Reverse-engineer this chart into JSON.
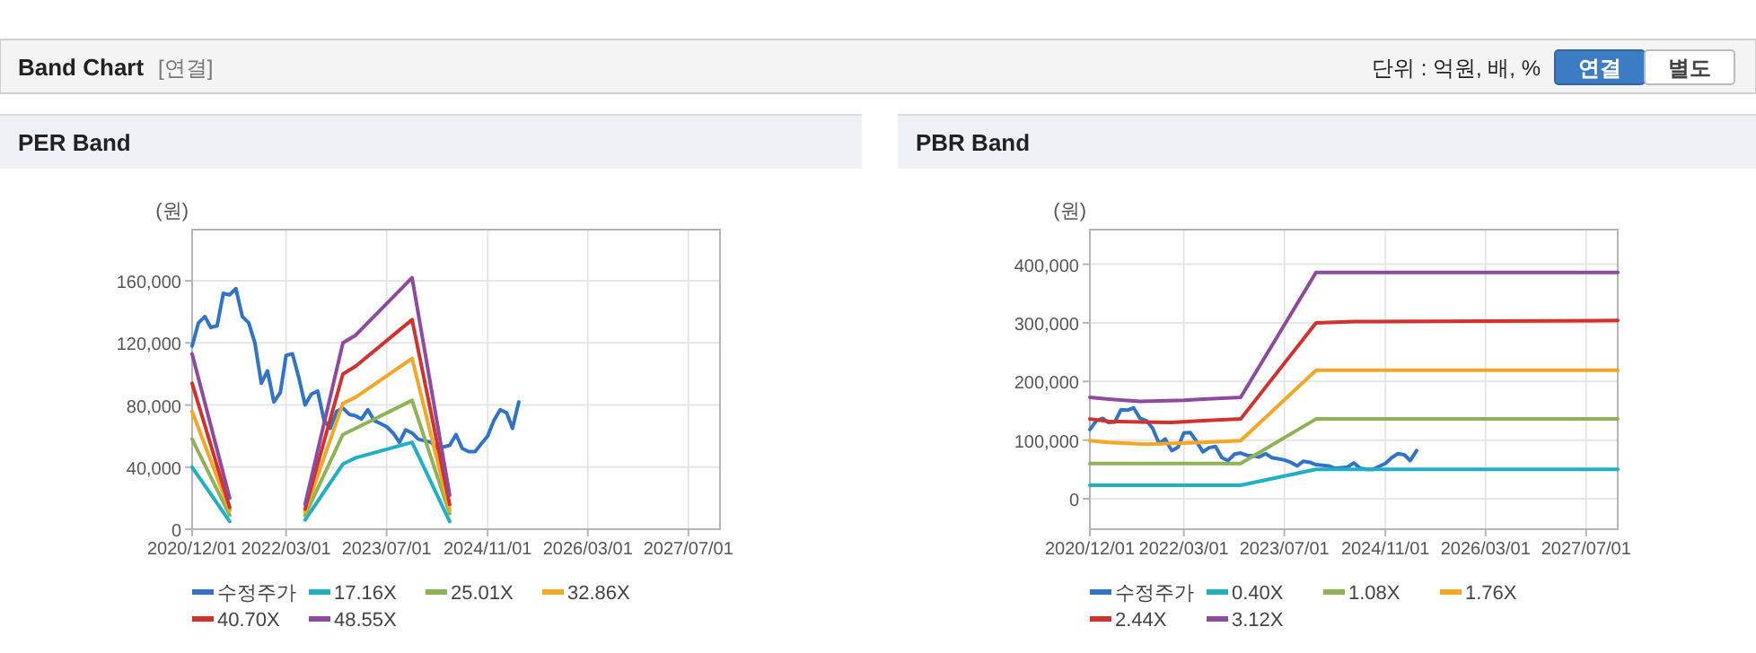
{
  "chart_data": [
    {
      "type": "other",
      "title": "Band Chart",
      "subtitle": "[연결]",
      "annotations": [
        "단위 : 억원, 배, %",
        "연결",
        "별도"
      ]
    },
    {
      "type": "line",
      "title": "PER Band",
      "ylabel": "(원)",
      "xlim": [
        "2020-12-01",
        "2027-12-01"
      ],
      "ylim": [
        0,
        193000
      ],
      "xticks": [
        {
          "value": "2020-12-01",
          "label": "2020/12/01"
        },
        {
          "value": "2022-03-01",
          "label": "2022/03/01"
        },
        {
          "value": "2023-07-01",
          "label": "2023/07/01"
        },
        {
          "value": "2024-11-01",
          "label": "2024/11/01"
        },
        {
          "value": "2026-03-01",
          "label": "2026/03/01"
        },
        {
          "value": "2027-07-01",
          "label": "2027/07/01"
        }
      ],
      "yticks": [
        0,
        {
          "value": 40000,
          "label": "40,000"
        },
        {
          "value": 80000,
          "label": "80,000"
        },
        {
          "value": 120000,
          "label": "120,000"
        },
        {
          "value": 160000,
          "label": "160,000"
        }
      ],
      "grid": true,
      "legend": "bottom",
      "line_style": "solid",
      "series": [
        {
          "name": "수정주가",
          "color": "#2f74c9",
          "x": [
            "2020-12",
            "2021-01",
            "2021-02",
            "2021-03",
            "2021-04",
            "2021-05",
            "2021-06",
            "2021-07",
            "2021-08",
            "2021-09",
            "2021-10",
            "2021-11",
            "2021-12",
            "2022-01",
            "2022-02",
            "2022-03",
            "2022-04",
            "2022-05",
            "2022-06",
            "2022-07",
            "2022-08",
            "2022-09",
            "2022-10",
            "2022-11",
            "2022-12",
            "2023-01",
            "2023-02",
            "2023-03",
            "2023-04",
            "2023-05",
            "2023-06",
            "2023-07",
            "2023-08",
            "2023-09",
            "2023-10",
            "2023-11",
            "2023-12",
            "2024-01",
            "2024-02",
            "2024-03",
            "2024-04",
            "2024-05",
            "2024-06",
            "2024-07",
            "2024-08",
            "2024-09",
            "2024-10",
            "2024-11",
            "2024-12",
            "2025-01",
            "2025-02",
            "2025-03",
            "2025-04"
          ],
          "values": [
            118000,
            133000,
            137000,
            130000,
            131000,
            152000,
            151000,
            155000,
            137000,
            133000,
            120000,
            94000,
            102000,
            82000,
            88000,
            112000,
            113000,
            98000,
            80000,
            87000,
            89000,
            70000,
            65000,
            76000,
            78000,
            74000,
            73000,
            71000,
            77000,
            70000,
            68000,
            66000,
            62000,
            56000,
            64000,
            62000,
            58000,
            57000,
            56000,
            52000,
            53000,
            54000,
            61000,
            52000,
            50000,
            50000,
            55000,
            60000,
            70000,
            77000,
            75000,
            65000,
            82000
          ]
        },
        {
          "name": "17.16X",
          "color": "#1fb0c6",
          "x": [
            "2020-12",
            "2021-06",
            "2021-12",
            "2022-06",
            "2022-12",
            "2023-02",
            "2023-11",
            "2024-05"
          ],
          "values": [
            40000,
            5000,
            null,
            6000,
            42000,
            46000,
            56000,
            5000
          ]
        },
        {
          "name": "25.01X",
          "color": "#8db356",
          "x": [
            "2020-12",
            "2021-06",
            "2021-12",
            "2022-06",
            "2022-12",
            "2023-02",
            "2023-11",
            "2024-05"
          ],
          "values": [
            58000,
            9000,
            null,
            9000,
            61000,
            65000,
            83000,
            10000
          ]
        },
        {
          "name": "32.86X",
          "color": "#f5a623",
          "x": [
            "2020-12",
            "2021-06",
            "2021-12",
            "2022-06",
            "2022-12",
            "2023-02",
            "2023-11",
            "2024-05"
          ],
          "values": [
            76000,
            12000,
            null,
            11000,
            81000,
            85000,
            110000,
            12000
          ]
        },
        {
          "name": "40.70X",
          "color": "#d2312c",
          "x": [
            "2020-12",
            "2021-06",
            "2021-12",
            "2022-06",
            "2022-12",
            "2023-02",
            "2023-11",
            "2024-05"
          ],
          "values": [
            94000,
            14000,
            null,
            13000,
            100000,
            105000,
            135000,
            16000
          ]
        },
        {
          "name": "48.55X",
          "color": "#8e4a9e",
          "x": [
            "2020-12",
            "2021-06",
            "2021-12",
            "2022-06",
            "2022-12",
            "2023-02",
            "2023-11",
            "2024-05"
          ],
          "values": [
            113000,
            20000,
            null,
            16000,
            120000,
            125000,
            162000,
            22000
          ]
        }
      ]
    },
    {
      "type": "line",
      "title": "PBR Band",
      "ylabel": "(원)",
      "xlim": [
        "2020-12-01",
        "2027-12-01"
      ],
      "ylim": [
        -52000,
        459000
      ],
      "xticks": [
        {
          "value": "2020-12-01",
          "label": "2020/12/01"
        },
        {
          "value": "2022-03-01",
          "label": "2022/03/01"
        },
        {
          "value": "2023-07-01",
          "label": "2023/07/01"
        },
        {
          "value": "2024-11-01",
          "label": "2024/11/01"
        },
        {
          "value": "2026-03-01",
          "label": "2026/03/01"
        },
        {
          "value": "2027-07-01",
          "label": "2027/07/01"
        }
      ],
      "yticks": [
        0,
        {
          "value": 100000,
          "label": "100,000"
        },
        {
          "value": 200000,
          "label": "200,000"
        },
        {
          "value": 300000,
          "label": "300,000"
        },
        {
          "value": 400000,
          "label": "400,000"
        }
      ],
      "grid": true,
      "legend": "bottom",
      "line_style": "solid",
      "series": [
        {
          "name": "수정주가",
          "color": "#2f74c9",
          "x": [
            "2020-12",
            "2021-01",
            "2021-02",
            "2021-03",
            "2021-04",
            "2021-05",
            "2021-06",
            "2021-07",
            "2021-08",
            "2021-09",
            "2021-10",
            "2021-11",
            "2021-12",
            "2022-01",
            "2022-02",
            "2022-03",
            "2022-04",
            "2022-05",
            "2022-06",
            "2022-07",
            "2022-08",
            "2022-09",
            "2022-10",
            "2022-11",
            "2022-12",
            "2023-01",
            "2023-02",
            "2023-03",
            "2023-04",
            "2023-05",
            "2023-06",
            "2023-07",
            "2023-08",
            "2023-09",
            "2023-10",
            "2023-11",
            "2023-12",
            "2024-01",
            "2024-02",
            "2024-03",
            "2024-04",
            "2024-05",
            "2024-06",
            "2024-07",
            "2024-08",
            "2024-09",
            "2024-10",
            "2024-11",
            "2024-12",
            "2025-01",
            "2025-02",
            "2025-03",
            "2025-04"
          ],
          "values": [
            118000,
            133000,
            137000,
            130000,
            131000,
            152000,
            151000,
            155000,
            137000,
            133000,
            120000,
            94000,
            102000,
            82000,
            88000,
            112000,
            113000,
            98000,
            80000,
            87000,
            89000,
            70000,
            65000,
            76000,
            78000,
            74000,
            73000,
            71000,
            77000,
            70000,
            68000,
            66000,
            62000,
            56000,
            64000,
            62000,
            58000,
            57000,
            56000,
            52000,
            53000,
            54000,
            61000,
            52000,
            50000,
            50000,
            55000,
            60000,
            70000,
            77000,
            75000,
            65000,
            82000
          ]
        },
        {
          "name": "0.40X",
          "color": "#1fb0c6",
          "x": [
            "2020-12",
            "2022-12",
            "2023-12",
            "2027-12"
          ],
          "values": [
            23000,
            23000,
            50000,
            50000
          ]
        },
        {
          "name": "1.08X",
          "color": "#8db356",
          "x": [
            "2020-12",
            "2022-12",
            "2023-12",
            "2027-12"
          ],
          "values": [
            60000,
            60000,
            136000,
            136000
          ]
        },
        {
          "name": "1.76X",
          "color": "#f5a623",
          "x": [
            "2020-12",
            "2021-03",
            "2021-09",
            "2022-06",
            "2022-12",
            "2023-12",
            "2027-12"
          ],
          "values": [
            99000,
            96000,
            93000,
            96000,
            99000,
            219000,
            219000
          ]
        },
        {
          "name": "2.44X",
          "color": "#d2312c",
          "x": [
            "2020-12",
            "2021-03",
            "2022-01",
            "2022-06",
            "2022-12",
            "2023-12",
            "2024-06",
            "2027-12"
          ],
          "values": [
            136000,
            132000,
            130000,
            133000,
            136000,
            300000,
            302000,
            304000
          ]
        },
        {
          "name": "3.12X",
          "color": "#8e4a9e",
          "x": [
            "2020-12",
            "2021-03",
            "2021-08",
            "2022-03",
            "2022-06",
            "2022-12",
            "2023-12",
            "2027-12"
          ],
          "values": [
            173000,
            170000,
            166000,
            168000,
            170000,
            173000,
            386000,
            386000
          ]
        }
      ]
    }
  ]
}
